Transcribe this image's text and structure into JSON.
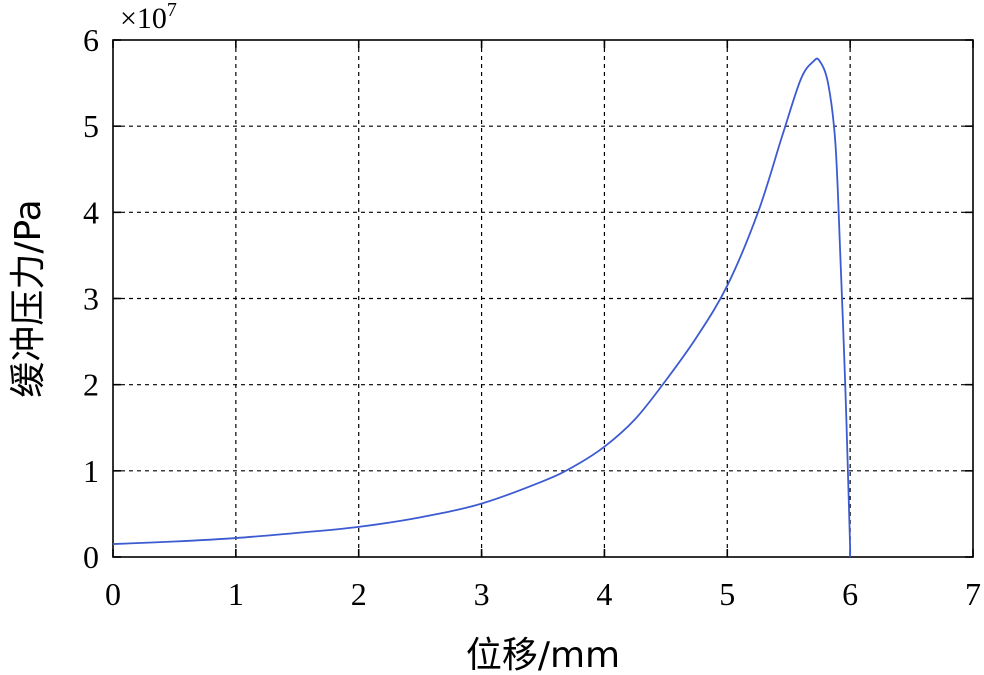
{
  "chart_data": {
    "type": "line",
    "xlabel": "位移/mm",
    "ylabel": "缓冲压力/Pa",
    "y_exponent_label": "×10",
    "y_exponent_power": "7",
    "xlim": [
      0,
      7
    ],
    "ylim": [
      0,
      6
    ],
    "xticks": [
      "0",
      "1",
      "2",
      "3",
      "4",
      "5",
      "6",
      "7"
    ],
    "yticks": [
      "0",
      "1",
      "2",
      "3",
      "4",
      "5",
      "6"
    ],
    "grid": true,
    "line_color": "#3d5bd1",
    "series": [
      {
        "x": [
          0,
          0.5,
          1.0,
          1.5,
          2.0,
          2.5,
          3.0,
          3.5,
          3.75,
          4.0,
          4.25,
          4.5,
          4.75,
          5.0,
          5.25,
          5.45,
          5.6,
          5.7,
          5.75,
          5.82,
          5.88,
          5.92,
          5.96,
          5.99,
          6.0
        ],
        "y": [
          0.15,
          0.18,
          0.22,
          0.28,
          0.35,
          0.46,
          0.62,
          0.88,
          1.05,
          1.28,
          1.6,
          2.05,
          2.55,
          3.15,
          4.0,
          4.9,
          5.55,
          5.75,
          5.76,
          5.5,
          4.8,
          3.5,
          2.0,
          0.6,
          0.1
        ]
      }
    ]
  }
}
